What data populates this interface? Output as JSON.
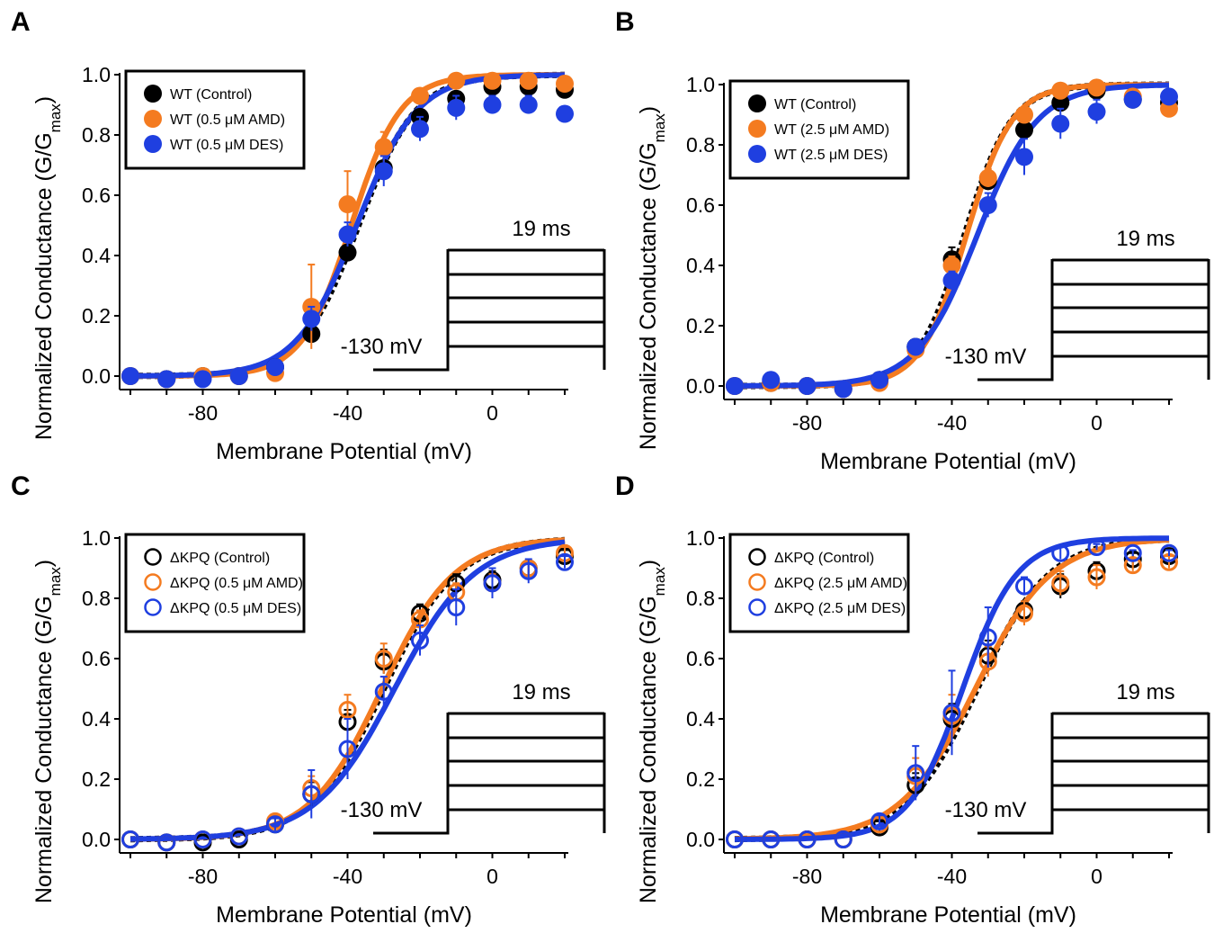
{
  "figure": {
    "panels": [
      "A",
      "B",
      "C",
      "D"
    ]
  },
  "colors": {
    "black": "#000000",
    "orange": "#f47b20",
    "blue": "#1f3fe0"
  },
  "chart_data": [
    {
      "panel": "A",
      "type": "scatter",
      "xlabel": "Membrane Potential (mV)",
      "ylabel": "Normalized Conductance (G/G",
      "ylabel_sub": "max",
      "ylabel_close": ")",
      "xlim": [
        -100,
        20
      ],
      "ylim": [
        0,
        1.0
      ],
      "xticks": [
        -80,
        -40,
        0
      ],
      "xtick_labels": [
        "-80",
        "-40",
        "0"
      ],
      "yticks": [
        0,
        0.2,
        0.4,
        0.6,
        0.8,
        1.0
      ],
      "ytick_labels": [
        "0.0",
        "0.2",
        "0.4",
        "0.6",
        "0.8",
        "1.0"
      ],
      "protocol": {
        "time_label": "19 ms",
        "holding_label": "-130 mV"
      },
      "x": [
        -100,
        -90,
        -80,
        -70,
        -60,
        -50,
        -40,
        -30,
        -20,
        -10,
        0,
        10,
        20
      ],
      "series": [
        {
          "name": "WT (Control)",
          "color": "black",
          "marker": "filled",
          "fit": {
            "v_half": -37,
            "k": 8.0
          },
          "fit_style": "dashed",
          "values": [
            0.0,
            -0.01,
            0.0,
            0.0,
            0.03,
            0.14,
            0.41,
            0.69,
            0.86,
            0.92,
            0.96,
            0.96,
            0.95
          ],
          "errors": []
        },
        {
          "name": "WT (0.5 μM AMD)",
          "color": "orange",
          "marker": "filled",
          "fit": {
            "v_half": -39,
            "k": 6.8
          },
          "fit_style": "solid",
          "values": [
            0.0,
            -0.01,
            0.0,
            0.0,
            0.01,
            0.23,
            0.57,
            0.76,
            0.93,
            0.98,
            0.98,
            0.98,
            0.97
          ],
          "errors": [
            0,
            0,
            0,
            0,
            0.02,
            0.14,
            0.11,
            0.05,
            0.02,
            0.01,
            0.01,
            0.01,
            0.01
          ]
        },
        {
          "name": "WT (0.5 μM DES)",
          "color": "blue",
          "marker": "filled",
          "fit": {
            "v_half": -37.5,
            "k": 8.3
          },
          "fit_style": "solid",
          "values": [
            0.0,
            -0.01,
            -0.01,
            0.0,
            0.03,
            0.19,
            0.47,
            0.68,
            0.82,
            0.89,
            0.9,
            0.9,
            0.87
          ],
          "errors": [
            0,
            0,
            0,
            0,
            0.01,
            0.04,
            0.04,
            0.05,
            0.04,
            0.04,
            0.03,
            0.03,
            0.02
          ]
        }
      ]
    },
    {
      "panel": "B",
      "type": "scatter",
      "xlabel": "Membrane Potential (mV)",
      "ylabel": "Normalized Conductance (G/G",
      "ylabel_sub": "max",
      "ylabel_close": ")",
      "xlim": [
        -100,
        20
      ],
      "ylim": [
        0,
        1.0
      ],
      "xticks": [
        -80,
        -40,
        0
      ],
      "xtick_labels": [
        "-80",
        "-40",
        "0"
      ],
      "yticks": [
        0,
        0.2,
        0.4,
        0.6,
        0.8,
        1.0
      ],
      "ytick_labels": [
        "0.0",
        "0.2",
        "0.4",
        "0.6",
        "0.8",
        "1.0"
      ],
      "protocol": {
        "time_label": "19 ms",
        "holding_label": "-130 mV"
      },
      "x": [
        -100,
        -90,
        -80,
        -70,
        -60,
        -50,
        -40,
        -30,
        -20,
        -10,
        0,
        10,
        20
      ],
      "series": [
        {
          "name": "WT (Control)",
          "color": "black",
          "marker": "filled",
          "fit": {
            "v_half": -36.5,
            "k": 6.5
          },
          "fit_style": "dashed",
          "values": [
            0.0,
            0.01,
            0.0,
            -0.01,
            0.02,
            0.13,
            0.42,
            0.68,
            0.85,
            0.94,
            0.98,
            0.95,
            0.94
          ],
          "errors": [
            0,
            0,
            0,
            0,
            0.01,
            0.02,
            0.04,
            0.03,
            0.02,
            0.01,
            0.01,
            0.01,
            0.01
          ]
        },
        {
          "name": "WT (2.5 μM AMD)",
          "color": "orange",
          "marker": "filled",
          "fit": {
            "v_half": -36,
            "k": 6.3
          },
          "fit_style": "solid",
          "values": [
            0.0,
            0.01,
            0.0,
            -0.01,
            0.01,
            0.12,
            0.4,
            0.69,
            0.9,
            0.98,
            0.99,
            0.96,
            0.92
          ],
          "errors": [
            0,
            0,
            0,
            0,
            0.01,
            0.02,
            0.03,
            0.03,
            0.02,
            0.01,
            0.01,
            0.01,
            0.01
          ]
        },
        {
          "name": "WT (2.5 μM DES)",
          "color": "blue",
          "marker": "filled",
          "fit": {
            "v_half": -33,
            "k": 8.3
          },
          "fit_style": "solid",
          "values": [
            0.0,
            0.02,
            0.0,
            -0.01,
            0.02,
            0.13,
            0.35,
            0.6,
            0.76,
            0.87,
            0.91,
            0.95,
            0.96
          ],
          "errors": [
            0,
            0,
            0,
            0,
            0.01,
            0.02,
            0.03,
            0.04,
            0.06,
            0.05,
            0.04,
            0.02,
            0.02
          ]
        }
      ]
    },
    {
      "panel": "C",
      "type": "scatter",
      "xlabel": "Membrane Potential (mV)",
      "ylabel": "Normalized Conductance (G/G",
      "ylabel_sub": "max",
      "ylabel_close": ")",
      "xlim": [
        -100,
        20
      ],
      "ylim": [
        0,
        1.0
      ],
      "xticks": [
        -80,
        -40,
        0
      ],
      "xtick_labels": [
        "-80",
        "-40",
        "0"
      ],
      "yticks": [
        0,
        0.2,
        0.4,
        0.6,
        0.8,
        1.0
      ],
      "ytick_labels": [
        "0.0",
        "0.2",
        "0.4",
        "0.6",
        "0.8",
        "1.0"
      ],
      "protocol": {
        "time_label": "19 ms",
        "holding_label": "-130 mV"
      },
      "x": [
        -100,
        -90,
        -80,
        -70,
        -60,
        -50,
        -40,
        -30,
        -20,
        -10,
        0,
        10,
        20
      ],
      "series": [
        {
          "name": "ΔKPQ (Control)",
          "color": "black",
          "marker": "open",
          "fit": {
            "v_half": -30,
            "k": 10
          },
          "fit_style": "dashed",
          "values": [
            0.0,
            -0.01,
            -0.01,
            0.0,
            0.05,
            0.15,
            0.39,
            0.59,
            0.75,
            0.85,
            0.86,
            0.9,
            0.94
          ],
          "errors": [
            0,
            0,
            0,
            0,
            0.02,
            0.04,
            0.04,
            0.04,
            0.03,
            0.03,
            0.03,
            0.02,
            0.02
          ]
        },
        {
          "name": "ΔKPQ (0.5  μM AMD)",
          "color": "orange",
          "marker": "open",
          "fit": {
            "v_half": -30.5,
            "k": 10
          },
          "fit_style": "solid",
          "values": [
            0.0,
            -0.01,
            0.0,
            0.01,
            0.06,
            0.17,
            0.43,
            0.6,
            0.73,
            0.82,
            0.85,
            0.9,
            0.95
          ],
          "errors": [
            0,
            0,
            0,
            0,
            0.02,
            0.04,
            0.05,
            0.05,
            0.03,
            0.03,
            0.03,
            0.02,
            0.02
          ]
        },
        {
          "name": "ΔKPQ (0.5  μM DES)",
          "color": "blue",
          "marker": "open",
          "fit": {
            "v_half": -27,
            "k": 11
          },
          "fit_style": "solid",
          "values": [
            0.0,
            -0.01,
            0.0,
            0.01,
            0.05,
            0.15,
            0.3,
            0.49,
            0.66,
            0.77,
            0.85,
            0.89,
            0.92
          ],
          "errors": [
            0,
            0,
            0,
            0,
            0.02,
            0.08,
            0.1,
            0.05,
            0.05,
            0.06,
            0.05,
            0.04,
            0.02
          ]
        }
      ]
    },
    {
      "panel": "D",
      "type": "scatter",
      "xlabel": "Membrane Potential (mV)",
      "ylabel": "Normalized Conductance (G/G",
      "ylabel_sub": "max",
      "ylabel_close": ")",
      "xlim": [
        -100,
        20
      ],
      "ylim": [
        0,
        1.0
      ],
      "xticks": [
        -80,
        -40,
        0
      ],
      "xtick_labels": [
        "-80",
        "-40",
        "0"
      ],
      "yticks": [
        0,
        0.2,
        0.4,
        0.6,
        0.8,
        1.0
      ],
      "ytick_labels": [
        "0.0",
        "0.2",
        "0.4",
        "0.6",
        "0.8",
        "1.0"
      ],
      "protocol": {
        "time_label": "19 ms",
        "holding_label": "-130 mV"
      },
      "x": [
        -100,
        -90,
        -80,
        -70,
        -60,
        -50,
        -40,
        -30,
        -20,
        -10,
        0,
        10,
        20
      ],
      "series": [
        {
          "name": "ΔKPQ (Control)",
          "color": "black",
          "marker": "open",
          "fit": {
            "v_half": -33,
            "k": 10
          },
          "fit_style": "dashed",
          "values": [
            0.0,
            0.0,
            0.0,
            0.0,
            0.04,
            0.18,
            0.4,
            0.61,
            0.76,
            0.84,
            0.89,
            0.93,
            0.94
          ],
          "errors": [
            0,
            0,
            0,
            0,
            0.02,
            0.04,
            0.05,
            0.05,
            0.03,
            0.04,
            0.03,
            0.02,
            0.02
          ]
        },
        {
          "name": "ΔKPQ (2.5 μM AMD)",
          "color": "orange",
          "marker": "open",
          "fit": {
            "v_half": -33.5,
            "k": 10.5
          },
          "fit_style": "solid",
          "values": [
            0.0,
            0.0,
            0.0,
            0.0,
            0.05,
            0.21,
            0.41,
            0.59,
            0.75,
            0.85,
            0.87,
            0.91,
            0.92
          ],
          "errors": [
            0,
            0,
            0,
            0,
            0.02,
            0.06,
            0.07,
            0.05,
            0.04,
            0.04,
            0.04,
            0.02,
            0.02
          ]
        },
        {
          "name": "ΔKPQ (2.5 μM DES)",
          "color": "blue",
          "marker": "open",
          "fit": {
            "v_half": -37,
            "k": 7.5
          },
          "fit_style": "solid",
          "values": [
            0.0,
            0.0,
            0.0,
            0.0,
            0.06,
            0.22,
            0.42,
            0.67,
            0.84,
            0.95,
            0.97,
            0.95,
            0.95
          ],
          "errors": [
            0,
            0,
            0,
            0,
            0.02,
            0.09,
            0.14,
            0.1,
            0.03,
            0.02,
            0.01,
            0.01,
            0.01
          ]
        }
      ]
    }
  ]
}
